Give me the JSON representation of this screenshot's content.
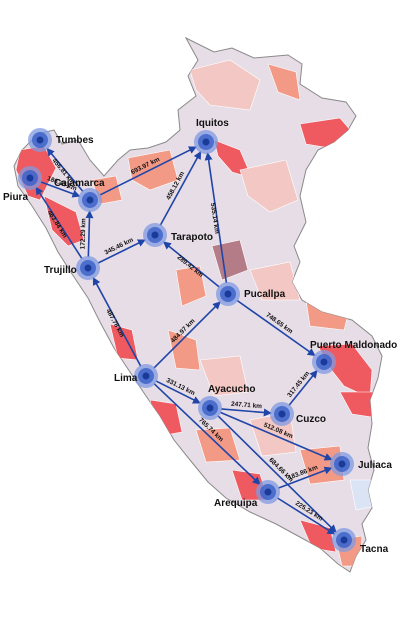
{
  "colors": {
    "route": "#1f45a8",
    "node_outer": "#7f9ae0",
    "node_inner": "#3e63c9",
    "node_core": "#1a3b9a",
    "region_base": "#e7dde6",
    "region_light": "#f3c8c4",
    "region_mid": "#f39a86",
    "region_dark": "#ef5a61",
    "region_mauve": "#b47c86",
    "lake": "#dbe4f5"
  },
  "cities": [
    {
      "id": "tumbes",
      "label": "Tumbes"
    },
    {
      "id": "piura",
      "label": "Piura"
    },
    {
      "id": "cajamarca",
      "label": "Cajamarca"
    },
    {
      "id": "trujillo",
      "label": "Trujillo"
    },
    {
      "id": "iquitos",
      "label": "Iquitos"
    },
    {
      "id": "tarapoto",
      "label": "Tarapoto"
    },
    {
      "id": "pucallpa",
      "label": "Pucallpa"
    },
    {
      "id": "lima",
      "label": "Lima"
    },
    {
      "id": "ayacucho",
      "label": "Ayacucho"
    },
    {
      "id": "cuzco",
      "label": "Cuzco"
    },
    {
      "id": "puerto_maldonado",
      "label": "Puerto Maldonado"
    },
    {
      "id": "juliaca",
      "label": "Juliaca"
    },
    {
      "id": "arequipa",
      "label": "Arequipa"
    },
    {
      "id": "tacna",
      "label": "Tacna"
    }
  ],
  "routes": [
    {
      "from": "cajamarca",
      "to": "tumbes",
      "label": "456.81 km"
    },
    {
      "from": "piura",
      "to": "cajamarca",
      "label": "186.43 km"
    },
    {
      "from": "cajamarca",
      "to": "iquitos",
      "label": "693.97 km"
    },
    {
      "from": "trujillo",
      "to": "cajamarca",
      "label": "172.29 km"
    },
    {
      "from": "trujillo",
      "to": "piura",
      "label": "463.84 km"
    },
    {
      "from": "trujillo",
      "to": "tarapoto",
      "label": "345.46 km"
    },
    {
      "from": "tarapoto",
      "to": "iquitos",
      "label": "458.12 km"
    },
    {
      "from": "pucallpa",
      "to": "tarapoto",
      "label": "289.42 km"
    },
    {
      "from": "pucallpa",
      "to": "iquitos",
      "label": "535.14 km"
    },
    {
      "from": "lima",
      "to": "trujillo",
      "label": "487.78 km"
    },
    {
      "from": "lima",
      "to": "pucallpa",
      "label": "484.97 km"
    },
    {
      "from": "pucallpa",
      "to": "puerto_maldonado",
      "label": "748.65 km"
    },
    {
      "from": "lima",
      "to": "ayacucho",
      "label": "331.13 km"
    },
    {
      "from": "ayacucho",
      "to": "cuzco",
      "label": "247.71 km"
    },
    {
      "from": "cuzco",
      "to": "puerto_maldonado",
      "label": "317.45 km"
    },
    {
      "from": "ayacucho",
      "to": "juliaca",
      "label": "512.08 km"
    },
    {
      "from": "lima",
      "to": "arequipa",
      "label": "765.74 km"
    },
    {
      "from": "ayacucho",
      "to": "tacna",
      "label": "684.66 km"
    },
    {
      "from": "arequipa",
      "to": "juliaca",
      "label": "183.86 km"
    },
    {
      "from": "arequipa",
      "to": "tacna",
      "label": "225.23 km"
    }
  ]
}
